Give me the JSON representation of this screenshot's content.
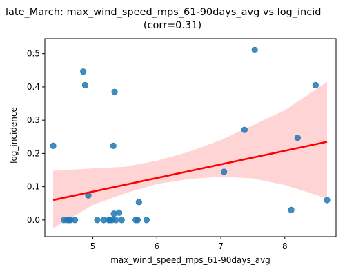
{
  "chart_data": {
    "type": "scatter",
    "title_line1": "late_March: max_wind_speed_mps_61-90days_avg vs log_incid",
    "title_line2": "(corr=0.31)",
    "xlabel": "max_wind_speed_mps_61-90days_avg",
    "ylabel": "log_incidence",
    "xlim": [
      4.25,
      8.8
    ],
    "ylim": [
      -0.05,
      0.545
    ],
    "xticks": [
      5,
      6,
      7,
      8
    ],
    "yticks": [
      0.0,
      0.1,
      0.2,
      0.3,
      0.4,
      0.5
    ],
    "ytick_labels": [
      "0.0",
      "0.1",
      "0.2",
      "0.3",
      "0.4",
      "0.5"
    ],
    "grid": false,
    "point_color": "#1f77b4",
    "fit_color": "#ff0000",
    "band_color": "#ffcccc",
    "points": [
      {
        "x": 4.38,
        "y": 0.223
      },
      {
        "x": 4.55,
        "y": 0.0
      },
      {
        "x": 4.6,
        "y": 0.0
      },
      {
        "x": 4.63,
        "y": 0.0
      },
      {
        "x": 4.65,
        "y": 0.0
      },
      {
        "x": 4.72,
        "y": 0.0
      },
      {
        "x": 4.85,
        "y": 0.446
      },
      {
        "x": 4.88,
        "y": 0.405
      },
      {
        "x": 4.93,
        "y": 0.074
      },
      {
        "x": 5.07,
        "y": 0.0
      },
      {
        "x": 5.17,
        "y": 0.0
      },
      {
        "x": 5.25,
        "y": 0.0
      },
      {
        "x": 5.27,
        "y": 0.0
      },
      {
        "x": 5.3,
        "y": 0.0
      },
      {
        "x": 5.32,
        "y": 0.223
      },
      {
        "x": 5.33,
        "y": 0.019
      },
      {
        "x": 5.34,
        "y": 0.385
      },
      {
        "x": 5.36,
        "y": 0.0
      },
      {
        "x": 5.41,
        "y": 0.022
      },
      {
        "x": 5.45,
        "y": 0.0
      },
      {
        "x": 5.67,
        "y": 0.0
      },
      {
        "x": 5.7,
        "y": 0.0
      },
      {
        "x": 5.72,
        "y": 0.054
      },
      {
        "x": 5.84,
        "y": 0.0
      },
      {
        "x": 7.05,
        "y": 0.145
      },
      {
        "x": 7.37,
        "y": 0.271
      },
      {
        "x": 7.53,
        "y": 0.511
      },
      {
        "x": 8.1,
        "y": 0.03
      },
      {
        "x": 8.2,
        "y": 0.247
      },
      {
        "x": 8.48,
        "y": 0.405
      },
      {
        "x": 8.66,
        "y": 0.06
      }
    ],
    "fit_line": {
      "x": [
        4.38,
        8.66
      ],
      "y": [
        0.06,
        0.235
      ]
    },
    "confidence_band": {
      "x": [
        4.38,
        5.0,
        5.5,
        6.0,
        6.5,
        7.0,
        7.5,
        8.0,
        8.66
      ],
      "upper": [
        0.148,
        0.155,
        0.16,
        0.178,
        0.205,
        0.24,
        0.285,
        0.33,
        0.415
      ],
      "lower": [
        -0.025,
        0.045,
        0.08,
        0.108,
        0.123,
        0.13,
        0.125,
        0.105,
        0.065
      ]
    }
  }
}
